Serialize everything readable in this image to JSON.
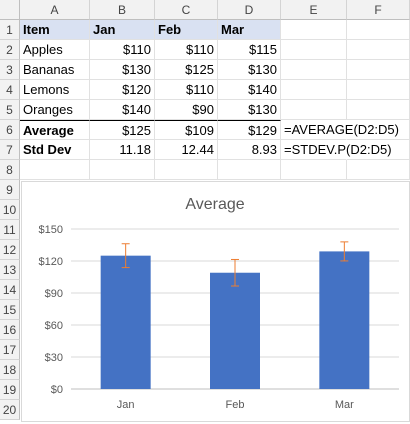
{
  "columns": [
    "A",
    "B",
    "C",
    "D",
    "E",
    "F"
  ],
  "rows": [
    "1",
    "2",
    "3",
    "4",
    "5",
    "6",
    "7",
    "8",
    "9",
    "10",
    "11",
    "12",
    "13",
    "14",
    "15",
    "16",
    "17",
    "18",
    "19",
    "20"
  ],
  "table": {
    "headers": [
      "Item",
      "Jan",
      "Feb",
      "Mar"
    ],
    "data": [
      [
        "Apples",
        "$110",
        "$110",
        "$115"
      ],
      [
        "Bananas",
        "$130",
        "$125",
        "$130"
      ],
      [
        "Lemons",
        "$120",
        "$110",
        "$140"
      ],
      [
        "Oranges",
        "$140",
        "$90",
        "$130"
      ]
    ],
    "average": {
      "label": "Average",
      "values": [
        "$125",
        "$109",
        "$129"
      ],
      "formula": "=AVERAGE(D2:D5)"
    },
    "stddev": {
      "label": "Std Dev",
      "values": [
        "11.18",
        "12.44",
        "8.93"
      ],
      "formula": "=STDEV.P(D2:D5)"
    }
  },
  "chart_data": {
    "type": "bar",
    "title": "Average",
    "categories": [
      "Jan",
      "Feb",
      "Mar"
    ],
    "values": [
      125,
      109,
      129
    ],
    "error_bars": [
      11.18,
      12.44,
      8.93
    ],
    "ylim": [
      0,
      150
    ],
    "yticks": [
      0,
      30,
      60,
      90,
      120,
      150
    ],
    "ytick_labels": [
      "$0",
      "$30",
      "$60",
      "$90",
      "$120",
      "$150"
    ],
    "bar_color": "#4472c4",
    "error_color": "#ed7d31",
    "grid": true,
    "legend": false
  }
}
